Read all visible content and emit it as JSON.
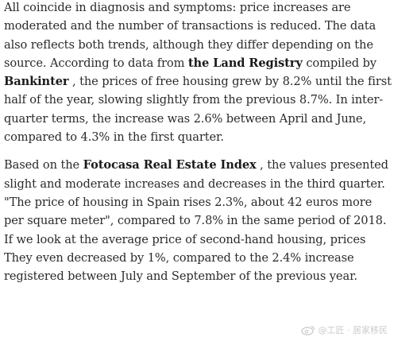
{
  "article": {
    "paragraph1": {
      "text_a": "All coincide in diagnosis and symptoms: price increases are moderated and the number of transactions is reduced. The data also reflects both trends, although they differ depending on the source. According to data from ",
      "bold_a": "the Land Registry",
      "text_b": " compiled by ",
      "bold_b": "Bankinter",
      "text_c": " , the prices of free housing grew by 8.2% until the first half of the year, slowing slightly from the previous 8.7%. In inter-quarter terms, the increase was 2.6% between April and June, compared to 4.3% in the first quarter."
    },
    "paragraph2": {
      "text_a": "Based on the ",
      "bold_a": "Fotocasa Real Estate Index",
      "text_b": " , the values presented slight and moderate increases and decreases in the third quarter. \"The price of housing in Spain rises 2.3%, about 42 euros more per square meter\", compared to 7.8% in the same period of 2018. If we look at the average price of second-hand housing, prices They even decreased by 1%, compared to the 2.4% increase registered between July and September of the previous year."
    }
  },
  "watermark": {
    "icon": "weibo-logo-icon",
    "text": "@工匠 · 居家移民"
  }
}
